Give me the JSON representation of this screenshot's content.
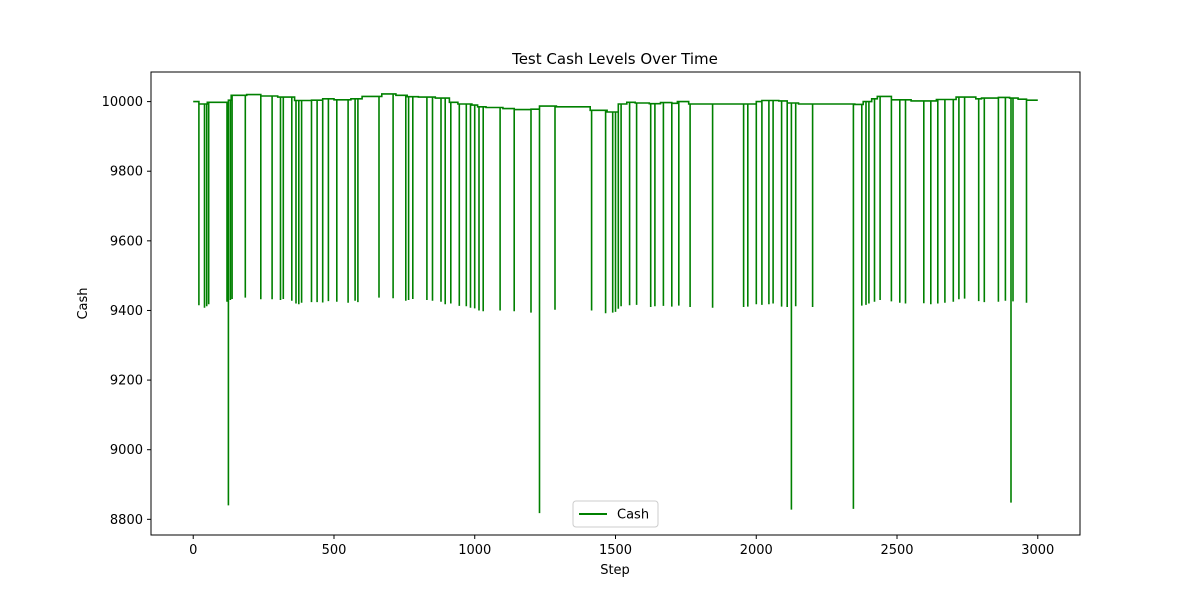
{
  "chart_data": {
    "type": "line",
    "title": "Test Cash Levels Over Time",
    "xlabel": "Step",
    "ylabel": "Cash",
    "xlim": [
      -150,
      3150
    ],
    "ylim": [
      8755,
      10085
    ],
    "xticks": [
      0,
      500,
      1000,
      1500,
      2000,
      2500,
      3000
    ],
    "yticks": [
      8800,
      9000,
      9200,
      9400,
      9600,
      9800,
      10000
    ],
    "grid": false,
    "legend_position": "lower center",
    "series": [
      {
        "name": "Cash",
        "color": "#008000",
        "baseline": [
          [
            0,
            10000
          ],
          [
            20,
            9993
          ],
          [
            50,
            9998
          ],
          [
            125,
            10004
          ],
          [
            135,
            10018
          ],
          [
            190,
            10020
          ],
          [
            240,
            10016
          ],
          [
            300,
            10013
          ],
          [
            360,
            10003
          ],
          [
            420,
            10004
          ],
          [
            460,
            10008
          ],
          [
            500,
            10005
          ],
          [
            560,
            10008
          ],
          [
            600,
            10015
          ],
          [
            670,
            10022
          ],
          [
            720,
            10018
          ],
          [
            760,
            10014
          ],
          [
            800,
            10013
          ],
          [
            860,
            10010
          ],
          [
            910,
            9998
          ],
          [
            940,
            9993
          ],
          [
            990,
            9990
          ],
          [
            1010,
            9985
          ],
          [
            1040,
            9983
          ],
          [
            1100,
            9980
          ],
          [
            1140,
            9977
          ],
          [
            1200,
            9978
          ],
          [
            1230,
            9987
          ],
          [
            1290,
            9985
          ],
          [
            1410,
            9975
          ],
          [
            1470,
            9970
          ],
          [
            1510,
            9993
          ],
          [
            1540,
            9998
          ],
          [
            1570,
            9996
          ],
          [
            1620,
            9994
          ],
          [
            1660,
            9997
          ],
          [
            1700,
            9995
          ],
          [
            1720,
            10000
          ],
          [
            1760,
            9993
          ],
          [
            1950,
            9993
          ],
          [
            2000,
            10000
          ],
          [
            2020,
            10003
          ],
          [
            2080,
            10002
          ],
          [
            2110,
            9996
          ],
          [
            2150,
            9993
          ],
          [
            2350,
            9992
          ],
          [
            2380,
            10000
          ],
          [
            2410,
            10008
          ],
          [
            2430,
            10015
          ],
          [
            2480,
            10005
          ],
          [
            2550,
            10002
          ],
          [
            2610,
            10002
          ],
          [
            2640,
            10006
          ],
          [
            2710,
            10013
          ],
          [
            2780,
            10008
          ],
          [
            2800,
            10010
          ],
          [
            2860,
            10012
          ],
          [
            2900,
            10010
          ],
          [
            2930,
            10007
          ],
          [
            2960,
            10004
          ],
          [
            3000,
            10004
          ]
        ],
        "dips": [
          [
            20,
            9415
          ],
          [
            40,
            9408
          ],
          [
            48,
            9412
          ],
          [
            55,
            9418
          ],
          [
            120,
            9425
          ],
          [
            125,
            8840
          ],
          [
            132,
            9430
          ],
          [
            138,
            9433
          ],
          [
            185,
            9437
          ],
          [
            240,
            9432
          ],
          [
            280,
            9432
          ],
          [
            310,
            9430
          ],
          [
            320,
            9433
          ],
          [
            350,
            9428
          ],
          [
            365,
            9420
          ],
          [
            375,
            9418
          ],
          [
            385,
            9422
          ],
          [
            420,
            9424
          ],
          [
            440,
            9424
          ],
          [
            460,
            9423
          ],
          [
            480,
            9427
          ],
          [
            510,
            9425
          ],
          [
            550,
            9422
          ],
          [
            575,
            9428
          ],
          [
            585,
            9424
          ],
          [
            660,
            9437
          ],
          [
            710,
            9435
          ],
          [
            755,
            9428
          ],
          [
            765,
            9430
          ],
          [
            780,
            9433
          ],
          [
            830,
            9430
          ],
          [
            850,
            9428
          ],
          [
            880,
            9425
          ],
          [
            895,
            9418
          ],
          [
            915,
            9420
          ],
          [
            945,
            9413
          ],
          [
            970,
            9412
          ],
          [
            985,
            9408
          ],
          [
            1000,
            9406
          ],
          [
            1015,
            9400
          ],
          [
            1030,
            9398
          ],
          [
            1090,
            9400
          ],
          [
            1140,
            9398
          ],
          [
            1200,
            9394
          ],
          [
            1230,
            8818
          ],
          [
            1285,
            9402
          ],
          [
            1415,
            9400
          ],
          [
            1465,
            9392
          ],
          [
            1490,
            9394
          ],
          [
            1500,
            9396
          ],
          [
            1510,
            9405
          ],
          [
            1520,
            9412
          ],
          [
            1550,
            9415
          ],
          [
            1575,
            9416
          ],
          [
            1625,
            9410
          ],
          [
            1640,
            9412
          ],
          [
            1670,
            9413
          ],
          [
            1700,
            9411
          ],
          [
            1725,
            9414
          ],
          [
            1765,
            9410
          ],
          [
            1845,
            9408
          ],
          [
            1955,
            9410
          ],
          [
            1970,
            9411
          ],
          [
            2000,
            9418
          ],
          [
            2020,
            9416
          ],
          [
            2045,
            9418
          ],
          [
            2060,
            9420
          ],
          [
            2090,
            9411
          ],
          [
            2110,
            9410
          ],
          [
            2125,
            8828
          ],
          [
            2140,
            9412
          ],
          [
            2200,
            9410
          ],
          [
            2345,
            8830
          ],
          [
            2375,
            9414
          ],
          [
            2390,
            9416
          ],
          [
            2400,
            9420
          ],
          [
            2420,
            9425
          ],
          [
            2440,
            9430
          ],
          [
            2480,
            9426
          ],
          [
            2510,
            9422
          ],
          [
            2530,
            9420
          ],
          [
            2595,
            9421
          ],
          [
            2620,
            9418
          ],
          [
            2645,
            9420
          ],
          [
            2670,
            9422
          ],
          [
            2700,
            9425
          ],
          [
            2720,
            9432
          ],
          [
            2740,
            9434
          ],
          [
            2790,
            9427
          ],
          [
            2810,
            9424
          ],
          [
            2860,
            9425
          ],
          [
            2885,
            9428
          ],
          [
            2905,
            8848
          ],
          [
            2912,
            9426
          ],
          [
            2960,
            9422
          ]
        ]
      }
    ]
  }
}
